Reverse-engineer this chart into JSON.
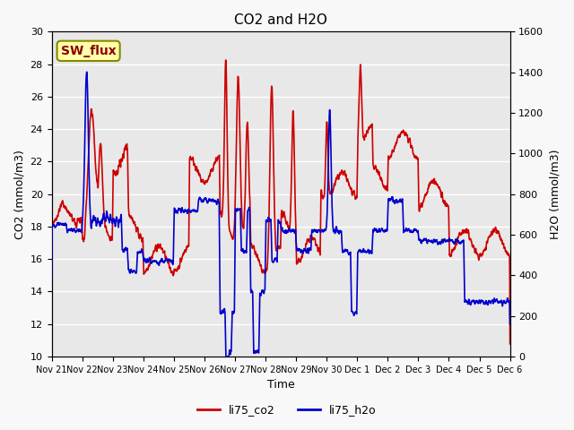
{
  "title": "CO2 and H2O",
  "xlabel": "Time",
  "ylabel_left": "CO2 (mmol/m3)",
  "ylabel_right": "H2O (mmol/m3)",
  "xlim_days": [
    0,
    15
  ],
  "ylim_left": [
    10,
    30
  ],
  "ylim_right": [
    0,
    1600
  ],
  "yticks_left": [
    10,
    12,
    14,
    16,
    18,
    20,
    22,
    24,
    26,
    28,
    30
  ],
  "yticks_right": [
    0,
    200,
    400,
    600,
    800,
    1000,
    1200,
    1400,
    1600
  ],
  "xtick_labels": [
    "Nov 21",
    "Nov 22",
    "Nov 23",
    "Nov 24",
    "Nov 25",
    "Nov 26",
    "Nov 27",
    "Nov 28",
    "Nov 29",
    "Nov 30",
    "Dec 1",
    "Dec 2",
    "Dec 3",
    "Dec 4",
    "Dec 5",
    "Dec 6"
  ],
  "legend_entries": [
    "li75_co2",
    "li75_h2o"
  ],
  "legend_colors": [
    "#cc0000",
    "#0000cc"
  ],
  "sw_flux_label": "SW_flux",
  "sw_flux_box_color": "#ffffaa",
  "sw_flux_border_color": "#888800",
  "sw_flux_text_color": "#880000",
  "background_color": "#f0f0f0",
  "plot_bg_color": "#e8e8e8",
  "grid_color": "#ffffff",
  "co2_color": "#cc0000",
  "h2o_color": "#0000cc",
  "linewidth": 1.2
}
